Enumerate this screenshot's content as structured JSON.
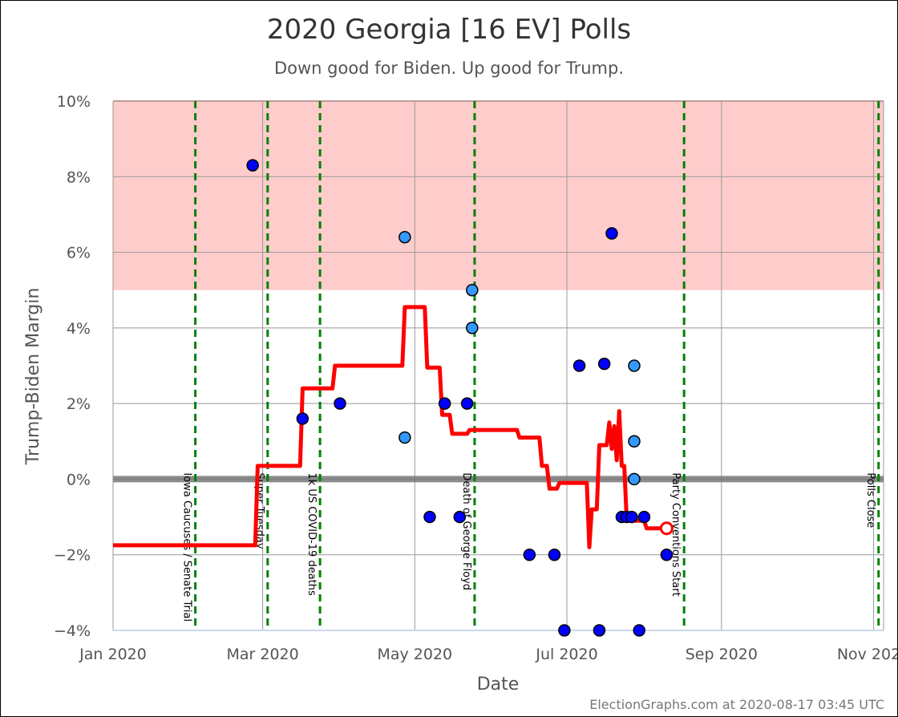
{
  "chart_data": {
    "type": "line",
    "title": "2020 Georgia [16 EV] Polls",
    "subtitle": "Down good for Biden. Up good for Trump.",
    "xlabel": "Date",
    "ylabel": "Trump-Biden Margin",
    "xlim": [
      "2020-01-01",
      "2020-11-05"
    ],
    "ylim": [
      -4,
      10
    ],
    "x_ticks": [
      {
        "date": "2020-01-01",
        "label": "Jan 2020"
      },
      {
        "date": "2020-03-01",
        "label": "Mar 2020"
      },
      {
        "date": "2020-05-01",
        "label": "May 2020"
      },
      {
        "date": "2020-07-01",
        "label": "Jul 2020"
      },
      {
        "date": "2020-09-01",
        "label": "Sep 2020"
      },
      {
        "date": "2020-11-01",
        "label": "Nov 2020"
      }
    ],
    "y_ticks": [
      {
        "value": -4,
        "label": "−4%"
      },
      {
        "value": -2,
        "label": "−2%"
      },
      {
        "value": 0,
        "label": "0%"
      },
      {
        "value": 2,
        "label": "2%"
      },
      {
        "value": 4,
        "label": "4%"
      },
      {
        "value": 6,
        "label": "6%"
      },
      {
        "value": 8,
        "label": "8%"
      },
      {
        "value": 10,
        "label": "10%"
      }
    ],
    "grid": true,
    "shaded_band": {
      "from": 5,
      "to": 10,
      "color": "#ffcccc",
      "edge_color": "#e8a0a0"
    },
    "zero_line_color": "#777777",
    "events": [
      {
        "date": "2020-02-03",
        "label": "Iowa Caucuses / Senate Trial"
      },
      {
        "date": "2020-03-03",
        "label": "Super Tuesday"
      },
      {
        "date": "2020-03-24",
        "label": "1k US COVID-19 deaths"
      },
      {
        "date": "2020-05-25",
        "label": "Death of George Floyd"
      },
      {
        "date": "2020-08-17",
        "label": "Party Conventions Start"
      },
      {
        "date": "2020-11-03",
        "label": "Polls Close"
      }
    ],
    "average_line": {
      "color": "#ff0000",
      "points": [
        [
          "2020-01-01",
          -1.75
        ],
        [
          "2020-02-27",
          -1.75
        ],
        [
          "2020-02-28",
          0.35
        ],
        [
          "2020-03-16",
          0.35
        ],
        [
          "2020-03-17",
          2.4
        ],
        [
          "2020-03-29",
          2.4
        ],
        [
          "2020-03-30",
          3.0
        ],
        [
          "2020-04-26",
          3.0
        ],
        [
          "2020-04-27",
          4.55
        ],
        [
          "2020-05-05",
          4.55
        ],
        [
          "2020-05-06",
          2.95
        ],
        [
          "2020-05-11",
          2.95
        ],
        [
          "2020-05-12",
          1.7
        ],
        [
          "2020-05-15",
          1.7
        ],
        [
          "2020-05-16",
          1.2
        ],
        [
          "2020-05-22",
          1.2
        ],
        [
          "2020-05-23",
          1.3
        ],
        [
          "2020-06-11",
          1.3
        ],
        [
          "2020-06-12",
          1.1
        ],
        [
          "2020-06-20",
          1.1
        ],
        [
          "2020-06-21",
          0.35
        ],
        [
          "2020-06-23",
          0.35
        ],
        [
          "2020-06-24",
          -0.25
        ],
        [
          "2020-06-27",
          -0.25
        ],
        [
          "2020-06-28",
          -0.1
        ],
        [
          "2020-07-09",
          -0.1
        ],
        [
          "2020-07-10",
          -1.8
        ],
        [
          "2020-07-11",
          -0.8
        ],
        [
          "2020-07-13",
          -0.8
        ],
        [
          "2020-07-14",
          0.9
        ],
        [
          "2020-07-17",
          0.9
        ],
        [
          "2020-07-18",
          1.5
        ],
        [
          "2020-07-19",
          0.8
        ],
        [
          "2020-07-20",
          1.4
        ],
        [
          "2020-07-21",
          0.5
        ],
        [
          "2020-07-22",
          1.8
        ],
        [
          "2020-07-23",
          0.35
        ],
        [
          "2020-07-24",
          0.35
        ],
        [
          "2020-07-25",
          -1.1
        ],
        [
          "2020-08-01",
          -1.1
        ],
        [
          "2020-08-02",
          -1.3
        ],
        [
          "2020-08-09",
          -1.3
        ],
        [
          "2020-08-10",
          -1.3
        ]
      ],
      "end_marker": {
        "date": "2020-08-10",
        "value": -1.3
      }
    },
    "polls": [
      {
        "date": "2020-02-26",
        "value": 8.3,
        "color": "#0000ff"
      },
      {
        "date": "2020-03-17",
        "value": 1.6,
        "color": "#0000ff"
      },
      {
        "date": "2020-04-01",
        "value": 2.0,
        "color": "#0000ff"
      },
      {
        "date": "2020-04-27",
        "value": 6.4,
        "color": "#3399ff"
      },
      {
        "date": "2020-04-27",
        "value": 1.1,
        "color": "#3399ff"
      },
      {
        "date": "2020-05-07",
        "value": -1.0,
        "color": "#0000ff"
      },
      {
        "date": "2020-05-13",
        "value": 2.0,
        "color": "#0000ff"
      },
      {
        "date": "2020-05-19",
        "value": -1.0,
        "color": "#0000ff"
      },
      {
        "date": "2020-05-22",
        "value": 2.0,
        "color": "#0000ff"
      },
      {
        "date": "2020-05-24",
        "value": 5.0,
        "color": "#3399ff"
      },
      {
        "date": "2020-05-24",
        "value": 4.0,
        "color": "#3399ff"
      },
      {
        "date": "2020-06-16",
        "value": -2.0,
        "color": "#0000ff"
      },
      {
        "date": "2020-06-26",
        "value": -2.0,
        "color": "#0000ff"
      },
      {
        "date": "2020-06-30",
        "value": -4.0,
        "color": "#0000ff"
      },
      {
        "date": "2020-07-06",
        "value": 3.0,
        "color": "#0000ff"
      },
      {
        "date": "2020-07-14",
        "value": -4.0,
        "color": "#0000ff"
      },
      {
        "date": "2020-07-16",
        "value": 3.05,
        "color": "#0000ff"
      },
      {
        "date": "2020-07-19",
        "value": 6.5,
        "color": "#0000ff"
      },
      {
        "date": "2020-07-23",
        "value": -1.0,
        "color": "#0000ff"
      },
      {
        "date": "2020-07-25",
        "value": -1.0,
        "color": "#0000ff"
      },
      {
        "date": "2020-07-27",
        "value": -1.0,
        "color": "#0000ff"
      },
      {
        "date": "2020-07-28",
        "value": 3.0,
        "color": "#3399ff"
      },
      {
        "date": "2020-07-28",
        "value": 1.0,
        "color": "#3399ff"
      },
      {
        "date": "2020-07-28",
        "value": 0.0,
        "color": "#3399ff"
      },
      {
        "date": "2020-07-30",
        "value": -4.0,
        "color": "#0000ff"
      },
      {
        "date": "2020-08-01",
        "value": -1.0,
        "color": "#0000ff"
      },
      {
        "date": "2020-08-10",
        "value": -2.0,
        "color": "#0000ff"
      }
    ]
  },
  "footer": {
    "credit": "ElectionGraphs.com at 2020-08-17 03:45 UTC"
  }
}
